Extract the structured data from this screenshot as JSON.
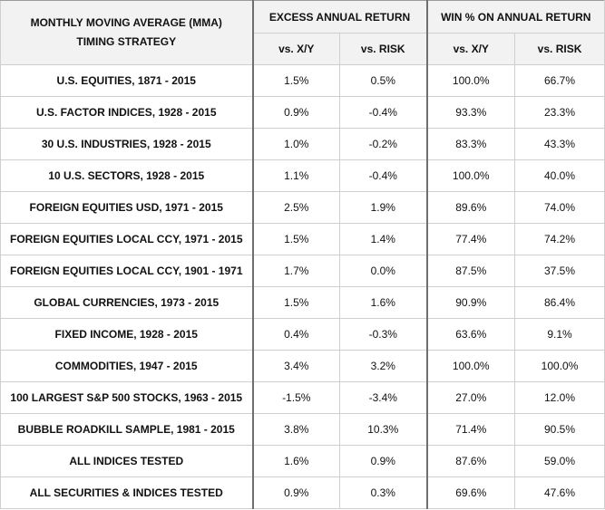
{
  "header": {
    "strategy_line1": "MONTHLY MOVING AVERAGE (MMA)",
    "strategy_line2": "TIMING STRATEGY",
    "group1": "EXCESS ANNUAL RETURN",
    "group2": "WIN % ON ANNUAL RETURN",
    "sub": [
      "vs. X/Y",
      "vs. RISK",
      "vs. X/Y",
      "vs. RISK"
    ]
  },
  "rows": [
    {
      "label": "U.S. EQUITIES, 1871 - 2015",
      "values": [
        "1.5%",
        "0.5%",
        "100.0%",
        "66.7%"
      ]
    },
    {
      "label": "U.S. FACTOR INDICES, 1928 - 2015",
      "values": [
        "0.9%",
        "-0.4%",
        "93.3%",
        "23.3%"
      ]
    },
    {
      "label": "30 U.S. INDUSTRIES, 1928 - 2015",
      "values": [
        "1.0%",
        "-0.2%",
        "83.3%",
        "43.3%"
      ]
    },
    {
      "label": "10 U.S. SECTORS, 1928 - 2015",
      "values": [
        "1.1%",
        "-0.4%",
        "100.0%",
        "40.0%"
      ]
    },
    {
      "label": "FOREIGN EQUITIES USD, 1971 - 2015",
      "values": [
        "2.5%",
        "1.9%",
        "89.6%",
        "74.0%"
      ]
    },
    {
      "label": "FOREIGN EQUITIES LOCAL CCY, 1971 - 2015",
      "values": [
        "1.5%",
        "1.4%",
        "77.4%",
        "74.2%"
      ]
    },
    {
      "label": "FOREIGN EQUITIES LOCAL CCY, 1901 - 1971",
      "values": [
        "1.7%",
        "0.0%",
        "87.5%",
        "37.5%"
      ]
    },
    {
      "label": "GLOBAL CURRENCIES, 1973 - 2015",
      "values": [
        "1.5%",
        "1.6%",
        "90.9%",
        "86.4%"
      ]
    },
    {
      "label": "FIXED INCOME, 1928 - 2015",
      "values": [
        "0.4%",
        "-0.3%",
        "63.6%",
        "9.1%"
      ]
    },
    {
      "label": "COMMODITIES, 1947 - 2015",
      "values": [
        "3.4%",
        "3.2%",
        "100.0%",
        "100.0%"
      ]
    },
    {
      "label": "100 LARGEST S&P 500 STOCKS, 1963 - 2015",
      "values": [
        "-1.5%",
        "-3.4%",
        "27.0%",
        "12.0%"
      ]
    },
    {
      "label": "BUBBLE ROADKILL SAMPLE, 1981 - 2015",
      "values": [
        "3.8%",
        "10.3%",
        "71.4%",
        "90.5%"
      ]
    },
    {
      "label": "ALL INDICES TESTED",
      "values": [
        "1.6%",
        "0.9%",
        "87.6%",
        "59.0%"
      ]
    },
    {
      "label": "ALL SECURITIES & INDICES TESTED",
      "values": [
        "0.9%",
        "0.3%",
        "69.6%",
        "47.6%"
      ]
    }
  ]
}
